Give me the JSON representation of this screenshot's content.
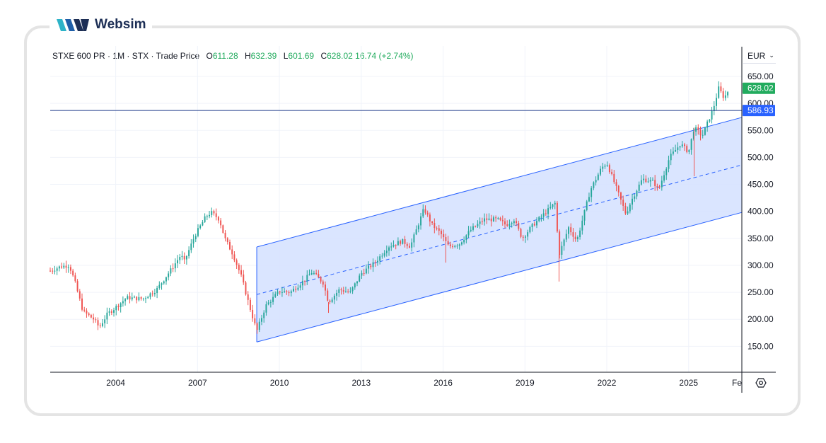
{
  "brand": {
    "name": "Websim"
  },
  "header": {
    "symbol": "STXE 600 PR",
    "sep1": "·",
    "interval": "1M",
    "sep2": "·",
    "exchange": "STX",
    "sep3": "·",
    "price_type": "Trade Price",
    "open_label": "O",
    "open": "611.28",
    "high_label": "H",
    "high": "632.39",
    "low_label": "L",
    "low": "601.69",
    "close_label": "C",
    "close": "628.02",
    "change": "16.74 (+2.74%)"
  },
  "currency_selector": {
    "label": "EUR"
  },
  "colors": {
    "up": "#26a69a",
    "down": "#ef5350",
    "channel_line": "#2962ff",
    "channel_fill": "#d6e2ff",
    "hline": "#1e3a8a",
    "price_badge": "#22ab5e",
    "hline_badge": "#2962ff"
  },
  "chart_data": {
    "type": "candlestick",
    "interval": "1M",
    "y_axis": {
      "ticks": [
        "150.00",
        "200.00",
        "250.00",
        "300.00",
        "350.00",
        "400.00",
        "450.00",
        "500.00",
        "550.00",
        "600.00",
        "650.00"
      ],
      "range": [
        102,
        667
      ]
    },
    "x_axis": {
      "ticks": [
        "2004",
        "2007",
        "2010",
        "2013",
        "2016",
        "2019",
        "2022",
        "2025",
        "Fe"
      ],
      "range": [
        2001.6,
        2026.95
      ]
    },
    "last_price_label": "628.02",
    "horizontal_line": {
      "value": 586.93,
      "label": "586.93"
    },
    "regression_channel": {
      "start": {
        "x": 2009.17,
        "y": 246
      },
      "end": {
        "x": 2026.95,
        "y": 486
      },
      "upper_offset": 88,
      "lower_offset": 88
    },
    "close_path": [
      [
        2001.6,
        290
      ],
      [
        2002.0,
        298
      ],
      [
        2002.3,
        300
      ],
      [
        2002.5,
        270
      ],
      [
        2002.8,
        215
      ],
      [
        2003.2,
        200
      ],
      [
        2003.4,
        185
      ],
      [
        2003.7,
        210
      ],
      [
        2004.0,
        222
      ],
      [
        2004.4,
        240
      ],
      [
        2005.0,
        238
      ],
      [
        2005.5,
        255
      ],
      [
        2006.0,
        290
      ],
      [
        2006.4,
        320
      ],
      [
        2006.5,
        305
      ],
      [
        2006.9,
        355
      ],
      [
        2007.3,
        390
      ],
      [
        2007.5,
        398
      ],
      [
        2007.8,
        385
      ],
      [
        2008.0,
        350
      ],
      [
        2008.3,
        320
      ],
      [
        2008.6,
        280
      ],
      [
        2008.9,
        225
      ],
      [
        2009.17,
        178
      ],
      [
        2009.5,
        225
      ],
      [
        2010.0,
        252
      ],
      [
        2010.4,
        250
      ],
      [
        2010.9,
        272
      ],
      [
        2011.2,
        288
      ],
      [
        2011.6,
        268
      ],
      [
        2011.8,
        232
      ],
      [
        2012.2,
        255
      ],
      [
        2012.6,
        250
      ],
      [
        2013.0,
        285
      ],
      [
        2013.5,
        305
      ],
      [
        2014.0,
        335
      ],
      [
        2014.5,
        345
      ],
      [
        2014.8,
        335
      ],
      [
        2015.3,
        405
      ],
      [
        2015.6,
        375
      ],
      [
        2015.9,
        360
      ],
      [
        2016.2,
        335
      ],
      [
        2016.6,
        340
      ],
      [
        2017.0,
        365
      ],
      [
        2017.5,
        385
      ],
      [
        2018.0,
        385
      ],
      [
        2018.3,
        375
      ],
      [
        2018.6,
        385
      ],
      [
        2018.9,
        350
      ],
      [
        2019.3,
        375
      ],
      [
        2019.8,
        400
      ],
      [
        2020.1,
        415
      ],
      [
        2020.25,
        320
      ],
      [
        2020.6,
        370
      ],
      [
        2020.9,
        345
      ],
      [
        2021.4,
        440
      ],
      [
        2021.8,
        480
      ],
      [
        2022.0,
        490
      ],
      [
        2022.3,
        450
      ],
      [
        2022.7,
        395
      ],
      [
        2022.9,
        420
      ],
      [
        2023.3,
        460
      ],
      [
        2023.7,
        455
      ],
      [
        2023.9,
        440
      ],
      [
        2024.3,
        500
      ],
      [
        2024.7,
        525
      ],
      [
        2025.0,
        510
      ],
      [
        2025.2,
        555
      ],
      [
        2025.5,
        540
      ],
      [
        2025.9,
        590
      ],
      [
        2026.1,
        628
      ],
      [
        2026.3,
        610
      ],
      [
        2026.5,
        628
      ]
    ]
  }
}
